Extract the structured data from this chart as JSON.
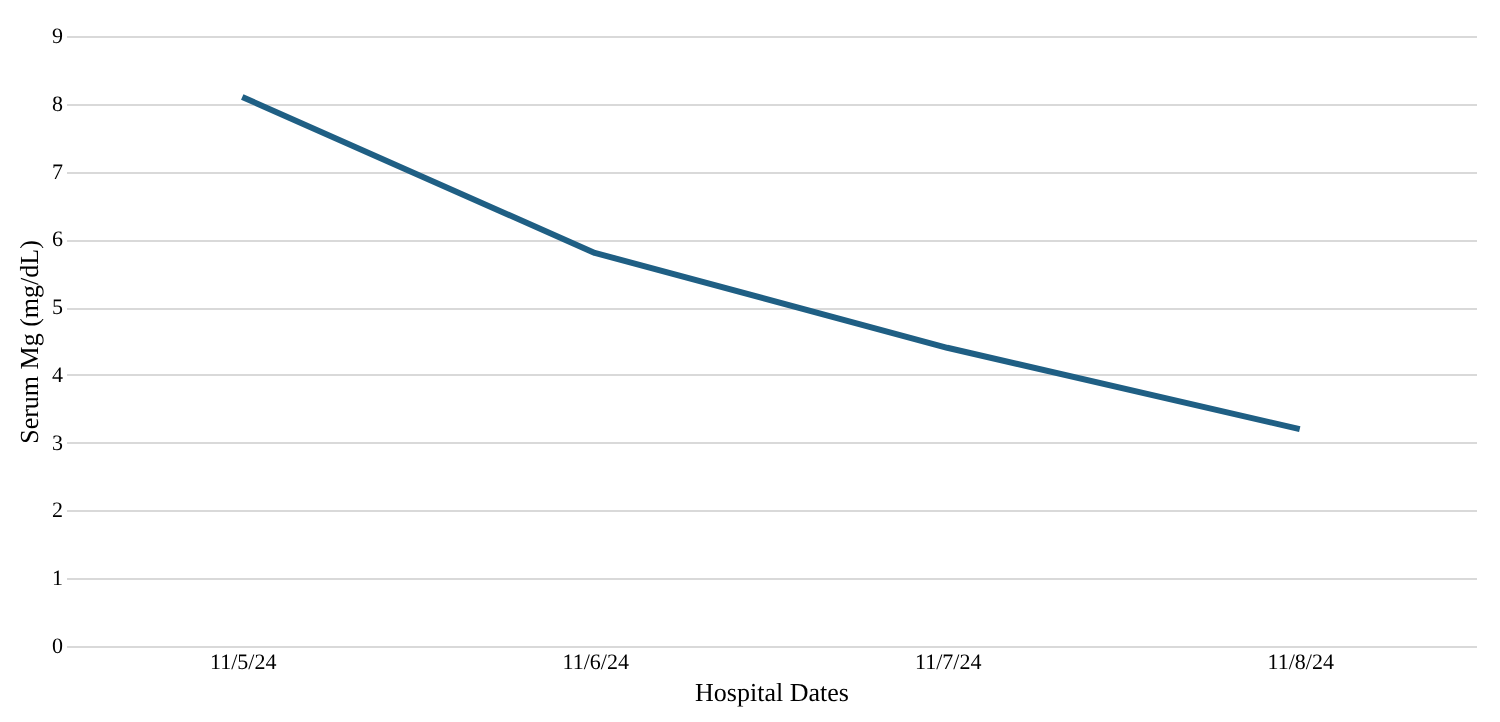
{
  "chart_data": {
    "type": "line",
    "xlabel": "Hospital Dates",
    "ylabel": "Serum Mg (mg/dL)",
    "categories": [
      "11/5/24",
      "11/6/24",
      "11/7/24",
      "11/8/24"
    ],
    "series": [
      {
        "color": "#1f5f84",
        "values": [
          8.1,
          5.8,
          4.4,
          3.2
        ]
      }
    ],
    "ylim": [
      0,
      9
    ],
    "yticks": [
      0,
      1,
      2,
      3,
      4,
      5,
      6,
      7,
      8,
      9
    ],
    "grid": "y",
    "marker": "none",
    "line_style": "solid"
  }
}
